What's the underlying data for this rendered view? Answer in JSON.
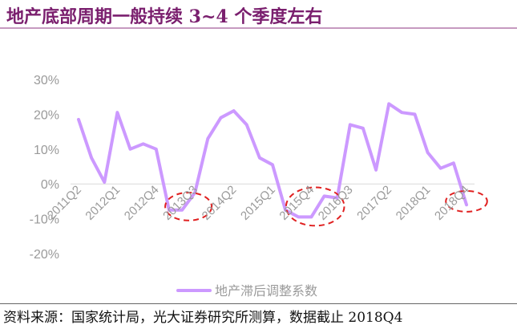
{
  "header": {
    "title": "地产底部周期一般持续 3~4 个季度左右"
  },
  "footer": {
    "source": "资料来源：国家统计局，光大证券研究所测算，数据截止 2018Q4"
  },
  "colors": {
    "title": "#7a1f6e",
    "series": "#cc99ff",
    "highlight": "#e02020",
    "axis_text": "#9a9a9a"
  },
  "chart_data": {
    "type": "line",
    "title": "",
    "xlabel": "",
    "ylabel": "",
    "ylim": [
      -20,
      30
    ],
    "yticks": [
      30,
      20,
      10,
      0,
      -10,
      -20
    ],
    "ytick_labels": [
      "30%",
      "20%",
      "10%",
      "0%",
      "-10%",
      "-20%"
    ],
    "grid": false,
    "legend_position": "bottom-center",
    "x": [
      "2011Q2",
      "2011Q3",
      "2011Q4",
      "2012Q1",
      "2012Q2",
      "2012Q3",
      "2012Q4",
      "2013Q1",
      "2013Q2",
      "2013Q3",
      "2013Q4",
      "2014Q1",
      "2014Q2",
      "2014Q3",
      "2014Q4",
      "2015Q1",
      "2015Q2",
      "2015Q3",
      "2015Q4",
      "2016Q1",
      "2016Q2",
      "2016Q3",
      "2016Q4",
      "2017Q1",
      "2017Q2",
      "2017Q3",
      "2017Q4",
      "2018Q1",
      "2018Q2",
      "2018Q3",
      "2018Q4"
    ],
    "xtick_labels": [
      {
        "index": 0,
        "label": "2011Q2"
      },
      {
        "index": 3,
        "label": "2012Q1"
      },
      {
        "index": 6,
        "label": "2012Q4"
      },
      {
        "index": 9,
        "label": "2013Q3"
      },
      {
        "index": 12,
        "label": "2014Q2"
      },
      {
        "index": 15,
        "label": "2015Q1"
      },
      {
        "index": 18,
        "label": "2015Q4"
      },
      {
        "index": 21,
        "label": "2016Q3"
      },
      {
        "index": 24,
        "label": "2017Q2"
      },
      {
        "index": 27,
        "label": "2018Q1"
      },
      {
        "index": 30,
        "label": "2018Q4"
      }
    ],
    "series": [
      {
        "name": "地产滞后调整系数",
        "values": [
          18.5,
          7.5,
          0.5,
          20.5,
          10,
          11.5,
          10,
          -7.5,
          -7.5,
          -2.5,
          13,
          19,
          21,
          17,
          7.5,
          5.5,
          -7.5,
          -9.5,
          -9.5,
          -3.5,
          -4,
          17,
          16,
          4,
          23,
          20.5,
          20,
          9,
          4.5,
          6,
          -6
        ]
      }
    ],
    "highlight_ellipses": [
      {
        "center_index": 8.5,
        "center_value": -6.5,
        "span_quarters": 3.6,
        "span_value": 8
      },
      {
        "center_index": 18.3,
        "center_value": -6.5,
        "span_quarters": 4.5,
        "span_value": 11
      },
      {
        "center_index": 30,
        "center_value": -5,
        "span_quarters": 3.2,
        "span_value": 6
      }
    ]
  }
}
